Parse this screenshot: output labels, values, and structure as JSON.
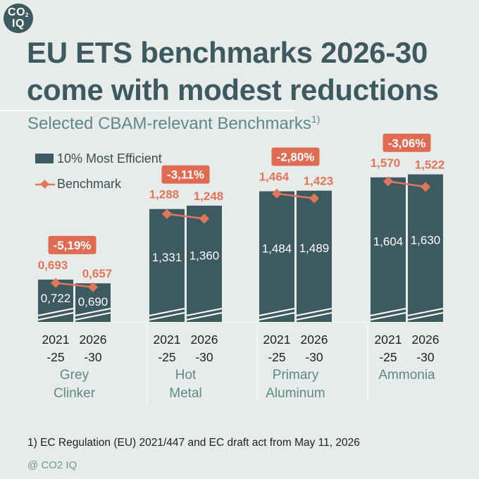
{
  "brand": {
    "logo_line1": "CO",
    "logo_sub": "2",
    "logo_line2": "IQ"
  },
  "title": "EU ETS benchmarks 2026-30 come with modest reductions",
  "subtitle": "Selected CBAM-relevant Benchmarks",
  "subtitle_note": "1)",
  "footnote": "1) EC Regulation (EU) 2021/447 and EC draft act from May 11, 2026",
  "source": "@ CO2 IQ",
  "colors": {
    "bar": "#3e5a61",
    "benchmark": "#e0765a",
    "label_box": "#df6c52",
    "category": "#5d8a88",
    "background": "#e7ebe9"
  },
  "chart_data": {
    "type": "bar",
    "legend": {
      "position": "top-left",
      "entries": [
        "10% Most Efficient",
        "Benchmark"
      ]
    },
    "periods": [
      "2021\n-25",
      "2026\n-30"
    ],
    "categories": [
      "Grey\nClinker",
      "Hot\nMetal",
      "Primary\nAluminum",
      "Ammonia"
    ],
    "series": [
      {
        "name": "10% Most Efficient",
        "kind": "bar",
        "labels": [
          [
            "0,722",
            "0,690"
          ],
          [
            "1,331",
            "1,360"
          ],
          [
            "1,484",
            "1,489"
          ],
          [
            "1,604",
            "1,630"
          ]
        ],
        "values": [
          [
            0.722,
            0.69
          ],
          [
            1.331,
            1.36
          ],
          [
            1.484,
            1.489
          ],
          [
            1.604,
            1.63
          ]
        ]
      },
      {
        "name": "Benchmark",
        "kind": "line",
        "labels": [
          [
            "0,693",
            "0,657"
          ],
          [
            "1,288",
            "1,248"
          ],
          [
            "1,464",
            "1,423"
          ],
          [
            "1,570",
            "1,522"
          ]
        ],
        "values": [
          [
            0.693,
            0.657
          ],
          [
            1.288,
            1.248
          ],
          [
            1.464,
            1.423
          ],
          [
            1.57,
            1.522
          ]
        ]
      }
    ],
    "changes": [
      "-5,19%",
      "-3,11%",
      "-2,80%",
      "-3,06%"
    ],
    "axis_break": true,
    "grid": false
  }
}
